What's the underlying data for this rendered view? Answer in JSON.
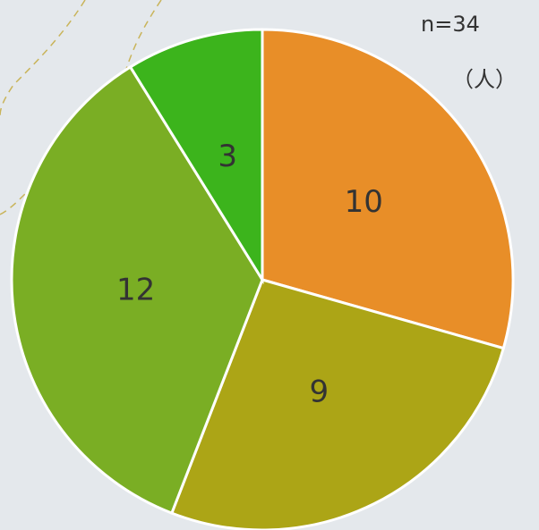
{
  "chart_data": {
    "type": "pie",
    "values": [
      10,
      9,
      12,
      3
    ],
    "colors": [
      "#e88e28",
      "#aca516",
      "#7aae24",
      "#3cb41c"
    ],
    "start_angle": 0,
    "direction": "clockwise",
    "annotations": [
      "n=34",
      "（人）"
    ]
  }
}
